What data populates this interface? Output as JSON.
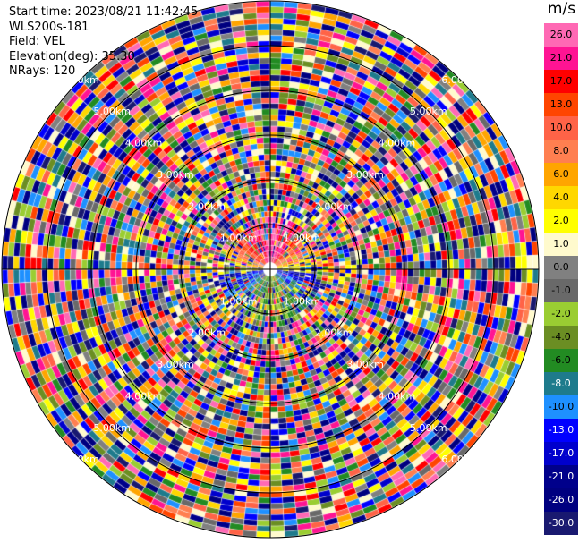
{
  "header": {
    "start_time": "Start time: 2023/08/21 11:42:45",
    "instrument": "WLS200s-181",
    "field": "Field: VEL",
    "elevation": "Elevation(deg): 35.30",
    "nrays": "NRays: 120"
  },
  "colorbar": {
    "unit": "m/s",
    "levels": [
      {
        "label": "26.0",
        "color": "#ff69b4",
        "text": "#000000"
      },
      {
        "label": "21.0",
        "color": "#ff1493",
        "text": "#000000"
      },
      {
        "label": "17.0",
        "color": "#ff0000",
        "text": "#000000"
      },
      {
        "label": "13.0",
        "color": "#ff4500",
        "text": "#000000"
      },
      {
        "label": "10.0",
        "color": "#ff6347",
        "text": "#000000"
      },
      {
        "label": "8.0",
        "color": "#ff7f50",
        "text": "#000000"
      },
      {
        "label": "6.0",
        "color": "#ffa500",
        "text": "#000000"
      },
      {
        "label": "4.0",
        "color": "#ffd700",
        "text": "#000000"
      },
      {
        "label": "2.0",
        "color": "#ffff00",
        "text": "#000000"
      },
      {
        "label": "1.0",
        "color": "#fffacd",
        "text": "#000000"
      },
      {
        "label": "0.0",
        "color": "#808080",
        "text": "#000000"
      },
      {
        "label": "-1.0",
        "color": "#696969",
        "text": "#000000"
      },
      {
        "label": "-2.0",
        "color": "#9acd32",
        "text": "#000000"
      },
      {
        "label": "-4.0",
        "color": "#6b8e23",
        "text": "#000000"
      },
      {
        "label": "-6.0",
        "color": "#228b22",
        "text": "#000000"
      },
      {
        "label": "-8.0",
        "color": "#1e7b8c",
        "text": "#ffffff"
      },
      {
        "label": "-10.0",
        "color": "#1e90ff",
        "text": "#000000"
      },
      {
        "label": "-13.0",
        "color": "#0000ff",
        "text": "#ffffff"
      },
      {
        "label": "-17.0",
        "color": "#0000cd",
        "text": "#ffffff"
      },
      {
        "label": "-21.0",
        "color": "#00008b",
        "text": "#ffffff"
      },
      {
        "label": "-26.0",
        "color": "#000080",
        "text": "#ffffff"
      },
      {
        "label": "-30.0",
        "color": "#191970",
        "text": "#ffffff"
      }
    ]
  },
  "chart_data": {
    "type": "heatmap",
    "projection": "polar-ppi",
    "field": "VEL",
    "elevation_deg": 35.3,
    "nrays": 120,
    "range_ring_labels": [
      "1.00km",
      "2.00km",
      "3.00km",
      "4.00km",
      "5.00km",
      "6.00km"
    ],
    "value_range": [
      -30,
      26
    ],
    "near_field_pattern": "positive velocities to the north (warm colors), negative velocities to the south (cool colors)",
    "outer_field_pattern": "noisy, random values across full colorscale"
  }
}
